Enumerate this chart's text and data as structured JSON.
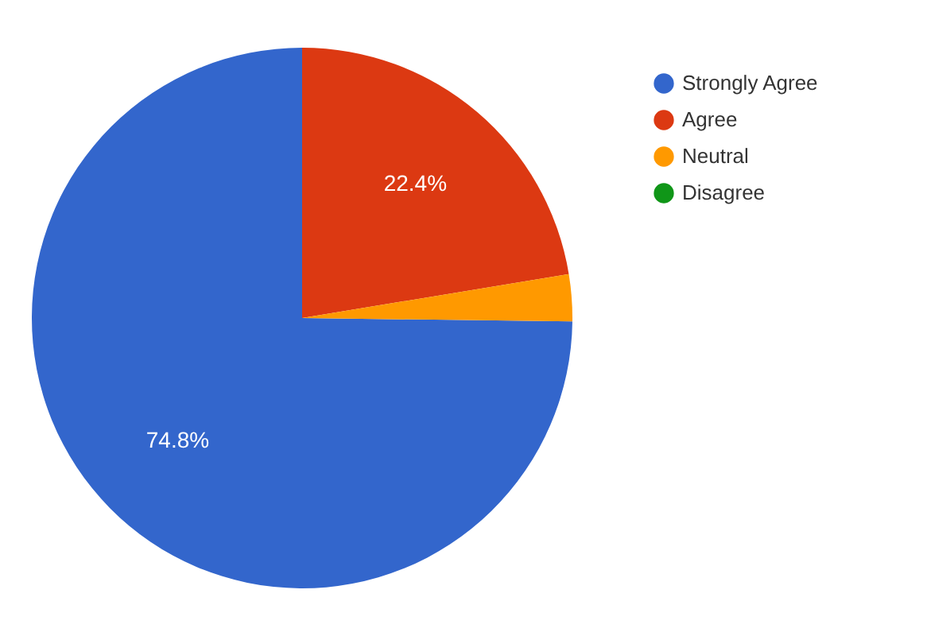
{
  "chart_data": {
    "type": "pie",
    "categories": [
      "Strongly Agree",
      "Agree",
      "Neutral",
      "Disagree"
    ],
    "values": [
      74.8,
      22.4,
      2.8,
      0
    ],
    "colors": [
      "#3366cc",
      "#dc3912",
      "#ff9900",
      "#109618"
    ],
    "value_labels": [
      "74.8%",
      "22.4%",
      null,
      null
    ],
    "legend": "top right"
  }
}
